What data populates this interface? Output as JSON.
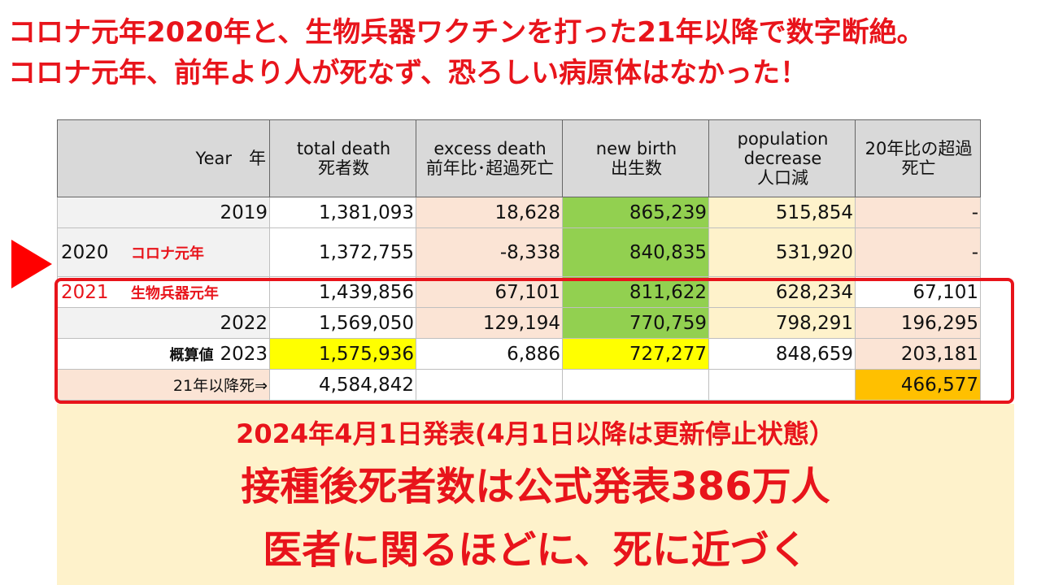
{
  "headline": {
    "line1": "コロナ元年2020年と、生物兵器ワクチンを打った21年以降で数字断絶。",
    "line2": "コロナ元年、前年より人が死なず、恐ろしい病原体はなかった！"
  },
  "table": {
    "headers": {
      "year": "Year　年",
      "total_death_en": "total death",
      "total_death_jp": "死者数",
      "excess_death_en": "excess death",
      "excess_death_jp": "前年比･超過死亡",
      "new_birth_en": "new birth",
      "new_birth_jp": "出生数",
      "pop_decrease_en1": "population",
      "pop_decrease_en2": "decrease",
      "pop_decrease_jp": "人口減",
      "excess_vs20_1": "20年比の超過",
      "excess_vs20_2": "死亡"
    },
    "rows": [
      {
        "year": "2019",
        "note": "",
        "total": "1,381,093",
        "excess": "18,628",
        "birth": "865,239",
        "decrease": "515,854",
        "vs20": "-"
      },
      {
        "year": "2020",
        "note": "コロナ元年",
        "total": "1,372,755",
        "excess": "-8,338",
        "birth": "840,835",
        "decrease": "531,920",
        "vs20": "-"
      },
      {
        "year": "2021",
        "note": "生物兵器元年",
        "total": "1,439,856",
        "excess": "67,101",
        "birth": "811,622",
        "decrease": "628,234",
        "vs20": "67,101"
      },
      {
        "year": "2022",
        "note": "",
        "total": "1,569,050",
        "excess": "129,194",
        "birth": "770,759",
        "decrease": "798,291",
        "vs20": "196,295"
      },
      {
        "year": "2023",
        "note": "概算値",
        "total": "1,575,936",
        "excess": "6,886",
        "birth": "727,277",
        "decrease": "848,659",
        "vs20": "203,181"
      }
    ],
    "summary": {
      "label": "21年以降死⇒",
      "total": "4,584,842",
      "vs20": "466,577"
    }
  },
  "bottom": {
    "line1": "2024年4月1日発表(4月1日以降は更新停止状態）",
    "line2": "接種後死者数は公式発表386万人",
    "line3": "医者に関るほどに、死に近づく"
  },
  "colors": {
    "accent_red": "#e8141b",
    "header_grey": "#d9d9d9",
    "pink": "#fbe4d5",
    "green": "#92d050",
    "peach": "#fef2cb",
    "yellow": "#ffff00",
    "orange": "#ffc000"
  }
}
